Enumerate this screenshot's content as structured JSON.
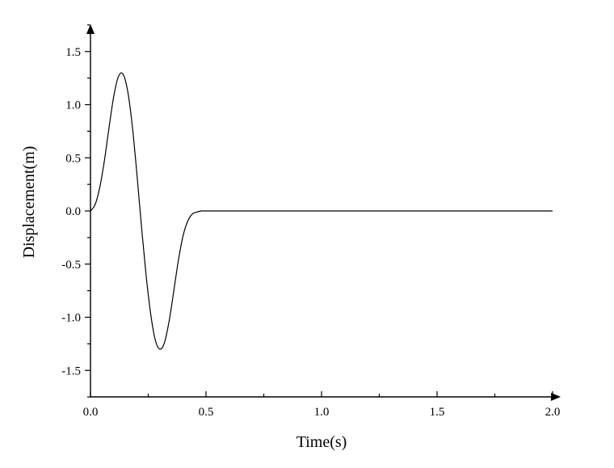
{
  "chart_data": {
    "type": "line",
    "title": "",
    "xlabel": "Time(s)",
    "ylabel": "Displacement(m)",
    "xlim": [
      0.0,
      2.0
    ],
    "ylim": [
      -1.75,
      1.75
    ],
    "xticks": [
      "0.0",
      "0.5",
      "1.0",
      "1.5",
      "2.0"
    ],
    "yticks": [
      "1.5",
      "1.0",
      "0.5",
      "0.0",
      "-0.5",
      "-1.0",
      "-1.5"
    ],
    "grid": false,
    "legend": "none",
    "line_color": "#000000",
    "series": [
      {
        "x": [
          0.0,
          0.02,
          0.04,
          0.06,
          0.08,
          0.1,
          0.12,
          0.14,
          0.16,
          0.18,
          0.2,
          0.22,
          0.24,
          0.26,
          0.28,
          0.3,
          0.32,
          0.34,
          0.36,
          0.38,
          0.4,
          0.42,
          0.44,
          0.46,
          0.48,
          0.5,
          0.6,
          0.8,
          1.0,
          1.2,
          1.4,
          1.6,
          1.8,
          2.0
        ],
        "y": [
          0.0,
          0.06,
          0.22,
          0.47,
          0.78,
          1.07,
          1.26,
          1.29,
          1.14,
          0.82,
          0.37,
          -0.13,
          -0.59,
          -0.96,
          -1.21,
          -1.3,
          -1.24,
          -1.04,
          -0.76,
          -0.47,
          -0.24,
          -0.1,
          -0.03,
          -0.01,
          0.0,
          0.0,
          0.0,
          0.0,
          0.0,
          0.0,
          0.0,
          0.0,
          0.0,
          0.0
        ]
      }
    ]
  }
}
